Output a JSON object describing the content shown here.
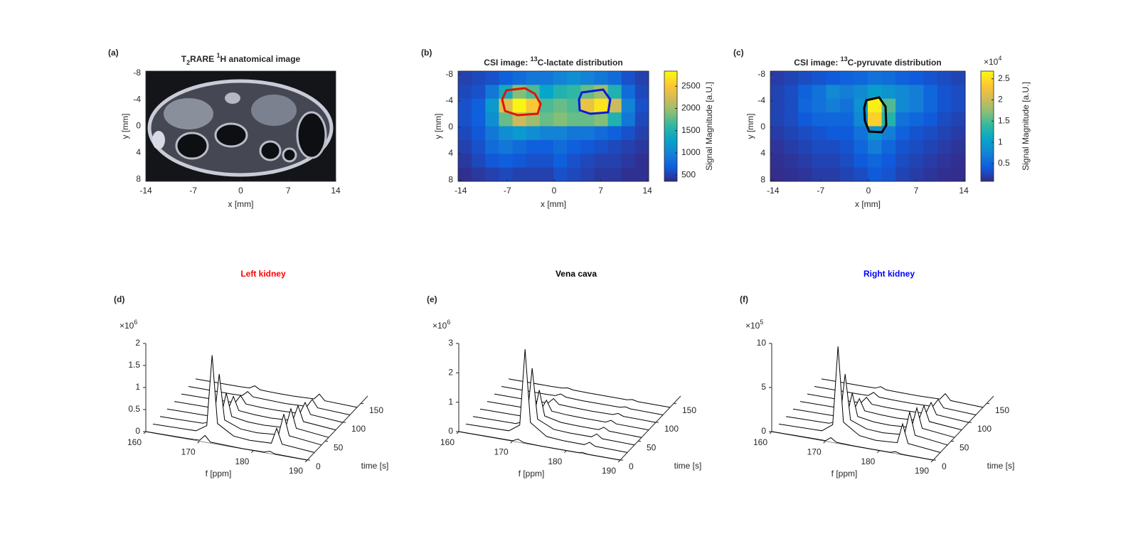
{
  "chart_data": [
    {
      "type": "image",
      "panel_label": "(a)",
      "title_parts": [
        {
          "text": "T"
        },
        {
          "text": "2",
          "script": "sub"
        },
        {
          "text": "RARE "
        },
        {
          "text": "1",
          "script": "super"
        },
        {
          "text": "H anatomical image"
        }
      ],
      "xlabel": "x [mm]",
      "ylabel": "y [mm]",
      "xlim": [
        -14,
        14
      ],
      "ylim": [
        -8.3,
        8.3
      ],
      "y_direction": "reverse",
      "xticks": [
        -14,
        -7,
        0,
        7,
        14
      ],
      "yticks": [
        -8,
        -4,
        0,
        4,
        8
      ]
    },
    {
      "type": "heatmap",
      "panel_label": "(b)",
      "title_parts": [
        {
          "text": "CSI image: "
        },
        {
          "text": "13",
          "script": "super"
        },
        {
          "text": "C-lactate distribution"
        }
      ],
      "xlabel": "x [mm]",
      "ylabel": "y [mm]",
      "xlim": [
        -14.4,
        14.2
      ],
      "ylim": [
        -8.5,
        8.2
      ],
      "y_direction": "reverse",
      "xticks": [
        -14,
        -7,
        0,
        7,
        14
      ],
      "yticks": [
        -8,
        -4,
        0,
        4,
        8
      ],
      "clim": [
        360,
        2840
      ],
      "cticks": [
        500,
        1000,
        1500,
        2000,
        2500
      ],
      "clabel": "Signal Magnitude [a.U.]",
      "z": [
        [
          500,
          550,
          600,
          700,
          800,
          900,
          900,
          1000,
          1100,
          1000,
          900,
          800,
          600,
          500
        ],
        [
          550,
          600,
          900,
          1400,
          1900,
          1700,
          1300,
          1500,
          1600,
          1800,
          2000,
          1500,
          800,
          550
        ],
        [
          600,
          700,
          1200,
          2300,
          2800,
          2500,
          1700,
          1800,
          1700,
          2400,
          2700,
          2200,
          1000,
          600
        ],
        [
          600,
          700,
          1100,
          1800,
          2200,
          2000,
          1800,
          1900,
          1800,
          1800,
          1900,
          1500,
          900,
          550
        ],
        [
          550,
          650,
          900,
          1100,
          1200,
          1100,
          1000,
          1000,
          900,
          900,
          800,
          700,
          600,
          500
        ],
        [
          500,
          600,
          800,
          900,
          800,
          700,
          700,
          800,
          700,
          650,
          600,
          550,
          500,
          450
        ],
        [
          450,
          550,
          650,
          700,
          650,
          600,
          600,
          700,
          600,
          550,
          500,
          500,
          450,
          400
        ],
        [
          400,
          450,
          500,
          550,
          500,
          500,
          500,
          600,
          550,
          500,
          450,
          450,
          400,
          400
        ]
      ]
    },
    {
      "type": "heatmap",
      "panel_label": "(c)",
      "title_parts": [
        {
          "text": "CSI image: "
        },
        {
          "text": "13",
          "script": "super"
        },
        {
          "text": "C-pyruvate distribution"
        }
      ],
      "xlabel": "x [mm]",
      "ylabel": "y [mm]",
      "xlim": [
        -14.4,
        14.2
      ],
      "ylim": [
        -8.5,
        8.2
      ],
      "y_direction": "reverse",
      "xticks": [
        -14,
        -7,
        0,
        7,
        14
      ],
      "yticks": [
        -8,
        -4,
        0,
        4,
        8
      ],
      "clim": [
        0.08,
        2.68
      ],
      "cticks": [
        0.5,
        1,
        1.5,
        2,
        2.5
      ],
      "clabel": "Signal Magnitude [a.U.]",
      "c_scale": {
        "base": "×10",
        "exponent": "4"
      },
      "z": [
        [
          0.2,
          0.25,
          0.3,
          0.35,
          0.4,
          0.45,
          0.5,
          0.6,
          0.55,
          0.45,
          0.4,
          0.35,
          0.3,
          0.25
        ],
        [
          0.25,
          0.3,
          0.45,
          0.6,
          0.8,
          0.7,
          0.8,
          1.0,
          0.9,
          0.8,
          0.7,
          0.5,
          0.35,
          0.3
        ],
        [
          0.25,
          0.3,
          0.5,
          0.6,
          0.7,
          0.6,
          0.9,
          2.6,
          1.5,
          0.8,
          0.7,
          0.5,
          0.35,
          0.3
        ],
        [
          0.25,
          0.3,
          0.4,
          0.5,
          0.5,
          0.5,
          0.8,
          2.4,
          1.3,
          0.6,
          0.5,
          0.4,
          0.3,
          0.25
        ],
        [
          0.2,
          0.25,
          0.3,
          0.35,
          0.4,
          0.4,
          0.6,
          0.9,
          0.7,
          0.45,
          0.35,
          0.3,
          0.25,
          0.2
        ],
        [
          0.15,
          0.2,
          0.25,
          0.3,
          0.3,
          0.35,
          0.5,
          0.7,
          0.5,
          0.35,
          0.3,
          0.25,
          0.2,
          0.15
        ],
        [
          0.12,
          0.15,
          0.2,
          0.25,
          0.25,
          0.3,
          0.4,
          0.5,
          0.4,
          0.3,
          0.25,
          0.2,
          0.15,
          0.12
        ],
        [
          0.1,
          0.12,
          0.15,
          0.2,
          0.2,
          0.25,
          0.3,
          0.4,
          0.35,
          0.25,
          0.2,
          0.15,
          0.12,
          0.1
        ]
      ]
    },
    {
      "type": "waterfall",
      "panel_label": "(d)",
      "title": "Left kidney",
      "title_color": "#ff0000",
      "xlabel": "f [ppm]",
      "tlabel": "time [s]",
      "y_scale": {
        "base": "×10",
        "exponent": "6"
      },
      "xlim": [
        160,
        190
      ],
      "xticks": [
        160,
        170,
        180,
        190
      ],
      "ylim": [
        0,
        2
      ],
      "yticks": [
        0,
        0.5,
        1,
        1.5,
        2
      ],
      "tlim": [
        0,
        170
      ],
      "tticks": [
        0,
        50,
        100,
        150
      ],
      "x": [
        160,
        168,
        170,
        171,
        172,
        175,
        178,
        182,
        183,
        184,
        190
      ],
      "series": [
        {
          "time": 0,
          "values": [
            0,
            0.01,
            0.02,
            0.15,
            0.02,
            0.01,
            0,
            0.01,
            0.05,
            0.01,
            0
          ]
        },
        {
          "time": 20,
          "values": [
            0,
            0.02,
            0.18,
            1.8,
            0.27,
            0.05,
            0.02,
            0.04,
            0.4,
            0.06,
            0
          ]
        },
        {
          "time": 40,
          "values": [
            0,
            0.02,
            0.12,
            1.2,
            0.18,
            0.04,
            0.02,
            0.06,
            0.55,
            0.08,
            0
          ]
        },
        {
          "time": 60,
          "values": [
            0,
            0.01,
            0.06,
            0.6,
            0.09,
            0.03,
            0.02,
            0.05,
            0.5,
            0.08,
            0
          ]
        },
        {
          "time": 80,
          "values": [
            0,
            0.01,
            0.04,
            0.35,
            0.05,
            0.02,
            0.01,
            0.04,
            0.4,
            0.06,
            0
          ]
        },
        {
          "time": 100,
          "values": [
            0,
            0.01,
            0.02,
            0.2,
            0.03,
            0.01,
            0.01,
            0.03,
            0.3,
            0.05,
            0
          ]
        },
        {
          "time": 120,
          "values": [
            0,
            0,
            0.01,
            0.12,
            0.02,
            0.01,
            0,
            0.02,
            0.2,
            0.03,
            0
          ]
        },
        {
          "time": 140,
          "values": [
            0,
            0,
            0.01,
            0.08,
            0.01,
            0,
            0,
            0.02,
            0.15,
            0.02,
            0
          ]
        }
      ]
    },
    {
      "type": "waterfall",
      "panel_label": "(e)",
      "title": "Vena cava",
      "title_color": "#000000",
      "xlabel": "f [ppm]",
      "tlabel": "time [s]",
      "y_scale": {
        "base": "×10",
        "exponent": "6"
      },
      "xlim": [
        160,
        190
      ],
      "xticks": [
        160,
        170,
        180,
        190
      ],
      "ylim": [
        0,
        3
      ],
      "yticks": [
        0,
        1,
        2,
        3
      ],
      "tlim": [
        0,
        170
      ],
      "tticks": [
        0,
        50,
        100,
        150
      ],
      "x": [
        160,
        168,
        170,
        171,
        172,
        175,
        178,
        182,
        183,
        184,
        190
      ],
      "series": [
        {
          "time": 0,
          "values": [
            0,
            0.01,
            0.01,
            0.1,
            0.02,
            0,
            0,
            0,
            0.03,
            0,
            0
          ]
        },
        {
          "time": 20,
          "values": [
            0,
            0.03,
            0.29,
            2.9,
            0.44,
            0.06,
            0.02,
            0.01,
            0.12,
            0.02,
            0
          ]
        },
        {
          "time": 40,
          "values": [
            0,
            0.02,
            0.2,
            2,
            0.3,
            0.05,
            0.02,
            0.02,
            0.15,
            0.02,
            0
          ]
        },
        {
          "time": 60,
          "values": [
            0,
            0.01,
            0.1,
            1,
            0.15,
            0.03,
            0.01,
            0.01,
            0.12,
            0.02,
            0
          ]
        },
        {
          "time": 80,
          "values": [
            0,
            0.01,
            0.04,
            0.4,
            0.06,
            0.02,
            0.01,
            0.01,
            0.1,
            0.01,
            0
          ]
        },
        {
          "time": 100,
          "values": [
            0,
            0,
            0.02,
            0.2,
            0.03,
            0.01,
            0,
            0.01,
            0.08,
            0.01,
            0
          ]
        },
        {
          "time": 120,
          "values": [
            0,
            0,
            0.01,
            0.1,
            0.02,
            0,
            0,
            0,
            0.05,
            0.01,
            0
          ]
        },
        {
          "time": 140,
          "values": [
            0,
            0,
            0.01,
            0.05,
            0.01,
            0,
            0,
            0,
            0.04,
            0,
            0
          ]
        }
      ]
    },
    {
      "type": "waterfall",
      "panel_label": "(f)",
      "title": "Right kidney",
      "title_color": "#0000ff",
      "xlabel": "f [ppm]",
      "tlabel": "time [s]",
      "y_scale": {
        "base": "×10",
        "exponent": "5"
      },
      "xlim": [
        160,
        190
      ],
      "xticks": [
        160,
        170,
        180,
        190
      ],
      "ylim": [
        0,
        10
      ],
      "yticks": [
        0,
        5,
        10
      ],
      "tlim": [
        0,
        170
      ],
      "tticks": [
        0,
        50,
        100,
        150
      ],
      "x": [
        160,
        168,
        170,
        171,
        172,
        175,
        178,
        182,
        183,
        184,
        190
      ],
      "series": [
        {
          "time": 0,
          "values": [
            0,
            0.05,
            0.05,
            0.5,
            0.08,
            0.02,
            0.01,
            0.02,
            0.2,
            0.03,
            0
          ]
        },
        {
          "time": 20,
          "values": [
            0,
            0.1,
            1,
            10,
            1.5,
            0.3,
            0.1,
            0.25,
            2.5,
            0.38,
            0
          ]
        },
        {
          "time": 40,
          "values": [
            0,
            0.1,
            0.6,
            6,
            0.9,
            0.2,
            0.1,
            0.3,
            3,
            0.45,
            0
          ]
        },
        {
          "time": 60,
          "values": [
            0,
            0.05,
            0.3,
            3,
            0.45,
            0.15,
            0.1,
            0.26,
            2.6,
            0.39,
            0
          ]
        },
        {
          "time": 80,
          "values": [
            0,
            0.05,
            0.15,
            1.5,
            0.23,
            0.1,
            0.05,
            0.2,
            2,
            0.3,
            0
          ]
        },
        {
          "time": 100,
          "values": [
            0,
            0.02,
            0.08,
            0.8,
            0.12,
            0.05,
            0.05,
            0.15,
            1.5,
            0.23,
            0
          ]
        },
        {
          "time": 120,
          "values": [
            0,
            0.02,
            0.05,
            0.5,
            0.08,
            0.03,
            0.02,
            0.1,
            1,
            0.15,
            0
          ]
        },
        {
          "time": 140,
          "values": [
            0,
            0.01,
            0.03,
            0.3,
            0.05,
            0.02,
            0.01,
            0.08,
            0.8,
            0.12,
            0
          ]
        }
      ]
    }
  ]
}
